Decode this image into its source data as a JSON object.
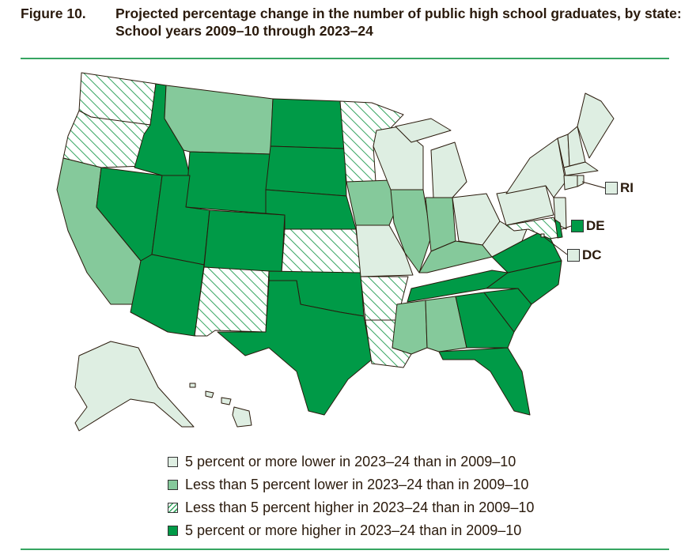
{
  "figure": {
    "number": "Figure 10.",
    "title": "Projected percentage change in the number of public high school graduates, by state: School years 2009–10 through 2023–24"
  },
  "colors": {
    "lower5plus": "#deeee2",
    "lowerUnder5": "#85c99b",
    "higherUnder5": "hatch",
    "higher5plus": "#009a47",
    "outline": "#2a1a0c",
    "hatch_line": "#36a561"
  },
  "legend": [
    {
      "key": "lower5plus",
      "label": "5 percent or more lower in 2023–24 than in 2009–10"
    },
    {
      "key": "lowerUnder5",
      "label": "Less than 5 percent lower in 2023–24 than in 2009–10"
    },
    {
      "key": "higherUnder5",
      "label": "Less than 5 percent higher in 2023–24 than in 2009–10"
    },
    {
      "key": "higher5plus",
      "label": "5 percent or more higher in 2023–24 than in 2009–10"
    }
  ],
  "callouts": [
    {
      "state": "RI",
      "label": "RI",
      "key": "lower5plus"
    },
    {
      "state": "DE",
      "label": "DE",
      "key": "higher5plus"
    },
    {
      "state": "DC",
      "label": "DC",
      "key": "lower5plus"
    }
  ],
  "states": {
    "WA": "higherUnder5",
    "OR": "higherUnder5",
    "CA": "lowerUnder5",
    "ID": "higher5plus",
    "NV": "higher5plus",
    "MT": "lowerUnder5",
    "WY": "higher5plus",
    "UT": "higher5plus",
    "AZ": "higher5plus",
    "CO": "higher5plus",
    "NM": "higherUnder5",
    "ND": "higher5plus",
    "SD": "higher5plus",
    "NE": "higher5plus",
    "KS": "higherUnder5",
    "OK": "higher5plus",
    "TX": "higher5plus",
    "MN": "higherUnder5",
    "IA": "lowerUnder5",
    "MO": "lower5plus",
    "AR": "higherUnder5",
    "LA": "higherUnder5",
    "WI": "lower5plus",
    "IL": "lowerUnder5",
    "MI": "lower5plus",
    "IN": "lowerUnder5",
    "OH": "lower5plus",
    "KY": "lowerUnder5",
    "TN": "higher5plus",
    "MS": "lowerUnder5",
    "AL": "lowerUnder5",
    "GA": "higher5plus",
    "FL": "higher5plus",
    "SC": "higher5plus",
    "NC": "higher5plus",
    "VA": "higher5plus",
    "WV": "lower5plus",
    "PA": "lower5plus",
    "NY": "lower5plus",
    "NJ": "lower5plus",
    "MD": "higherUnder5",
    "DE": "higher5plus",
    "DC": "lower5plus",
    "VT": "lower5plus",
    "NH": "lower5plus",
    "ME": "lower5plus",
    "MA": "lower5plus",
    "CT": "lower5plus",
    "RI": "lower5plus",
    "AK": "lower5plus",
    "HI": "lower5plus"
  }
}
